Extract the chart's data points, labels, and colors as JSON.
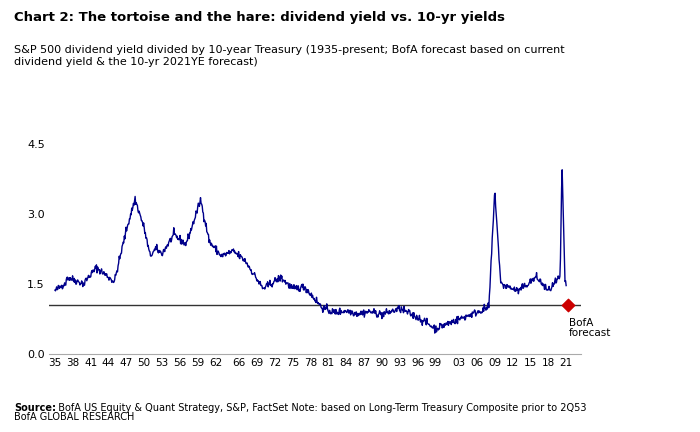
{
  "title_bold": "Chart 2: The tortoise and the hare: dividend yield vs. 10-yr yields",
  "subtitle": "S&P 500 dividend yield divided by 10-year Treasury (1935-present; BofA forecast based on current\ndividend yield & the 10-yr 2021YE forecast)",
  "xlabel_ticks": [
    "35",
    "38",
    "41",
    "44",
    "47",
    "50",
    "53",
    "56",
    "59",
    "62",
    "66",
    "69",
    "72",
    "75",
    "78",
    "81",
    "84",
    "87",
    "90",
    "93",
    "96",
    "99",
    "03",
    "06",
    "09",
    "12",
    "15",
    "18",
    "21"
  ],
  "ylim": [
    0.0,
    4.8
  ],
  "yticks": [
    0.0,
    1.5,
    3.0,
    4.5
  ],
  "ytick_labels": [
    "0.0",
    "1.5",
    "3.0",
    "4.5"
  ],
  "hline_y": 1.05,
  "line_color": "#00008B",
  "hline_color": "#333333",
  "forecast_marker_color": "#CC0000",
  "forecast_marker_value": 1.05,
  "forecast_label_line1": "BofA",
  "forecast_label_line2": "forecast",
  "source_bold": "Source:",
  "source_rest": "  BofA US Equity & Quant Strategy, S&P, FactSet Note: based on Long-Term Treasury Composite prior to 2Q53",
  "source_line2": "BofA GLOBAL RESEARCH",
  "background_color": "#ffffff"
}
